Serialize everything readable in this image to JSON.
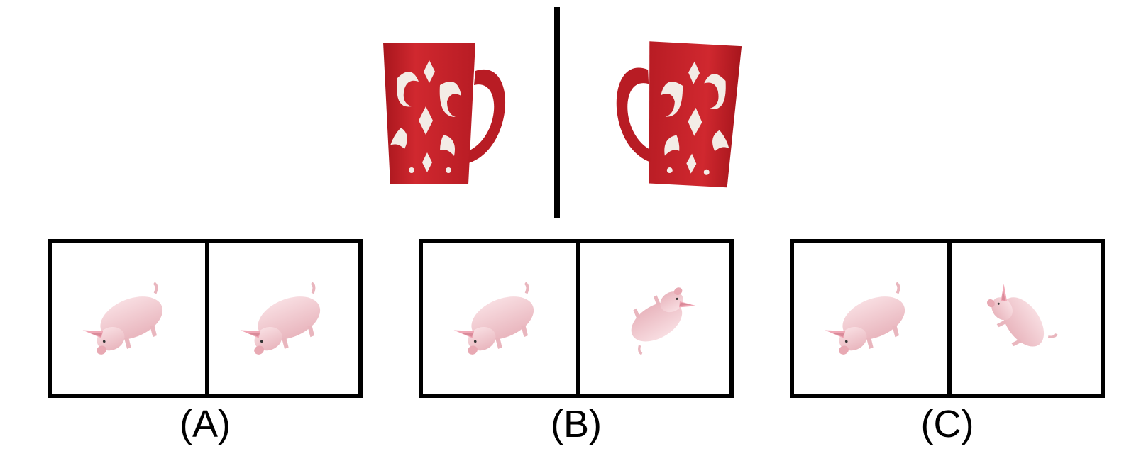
{
  "top_pair": {
    "left_image": "red-mug-icon",
    "right_image": "red-mug-rotated-icon"
  },
  "options": [
    {
      "label": "(A)",
      "left_image": "pig-icon",
      "right_image": "pig-icon"
    },
    {
      "label": "(B)",
      "left_image": "pig-icon",
      "right_image": "pig-upside-down-icon"
    },
    {
      "label": "(C)",
      "left_image": "pig-icon",
      "right_image": "pig-upright-icon"
    }
  ],
  "colors": {
    "mug_red": "#c4222a",
    "mug_pattern": "#f3ece6",
    "pig_pink": "#f2c9cf",
    "frame": "#000000"
  }
}
